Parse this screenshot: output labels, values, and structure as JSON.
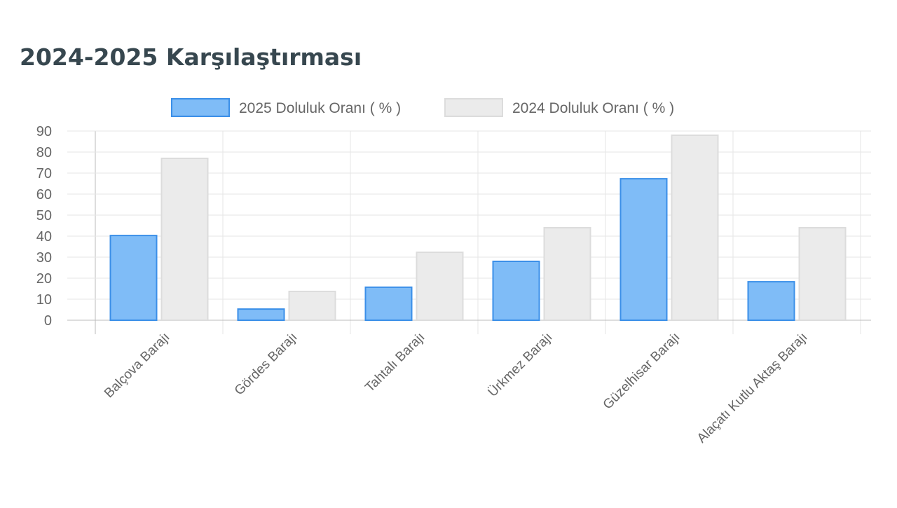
{
  "chart_data": {
    "type": "bar",
    "title": "2024-2025 Karşılaştırması",
    "categories": [
      "Balçova Barajı",
      "Gördes Barajı",
      "Tahtalı Barajı",
      "Ürkmez Barajı",
      "Güzelhisar Barajı",
      "Alaçatı Kutlu Aktaş Barajı"
    ],
    "series": [
      {
        "name": "2025 Doluluk Oranı ( % )",
        "color": "#7fbcf7",
        "values": [
          40.3,
          5.3,
          15.7,
          28,
          67.3,
          18.3
        ]
      },
      {
        "name": "2024 Doluluk Oranı ( % )",
        "color": "#ebebeb",
        "values": [
          77,
          13.7,
          32.3,
          44,
          88,
          44
        ]
      }
    ],
    "ylim": [
      0,
      90
    ],
    "yticks": [
      0,
      10,
      20,
      30,
      40,
      50,
      60,
      70,
      80,
      90
    ],
    "grid": true
  }
}
